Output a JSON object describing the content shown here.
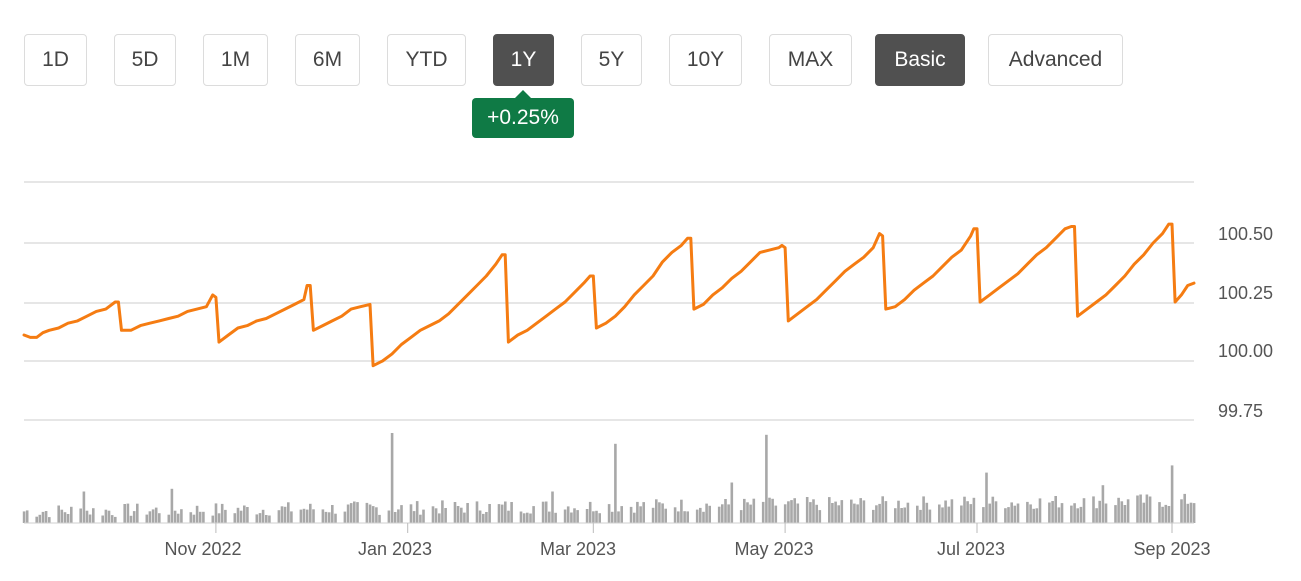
{
  "range_buttons": [
    {
      "label": "1D",
      "active": false
    },
    {
      "label": "5D",
      "active": false
    },
    {
      "label": "1M",
      "active": false
    },
    {
      "label": "6M",
      "active": false
    },
    {
      "label": "YTD",
      "active": false
    },
    {
      "label": "1Y",
      "active": true
    },
    {
      "label": "5Y",
      "active": false
    },
    {
      "label": "10Y",
      "active": false
    },
    {
      "label": "MAX",
      "active": false
    }
  ],
  "view_buttons": [
    {
      "label": "Basic",
      "active": true
    },
    {
      "label": "Advanced",
      "active": false
    }
  ],
  "change_badge": {
    "text": "+0.25%",
    "color": "#0f7a45"
  },
  "colors": {
    "line": "#f57c12",
    "volume": "#a8a8a8",
    "grid": "#dddddd",
    "active_button": "#505050"
  },
  "chart_data": {
    "type": "line",
    "title": "",
    "grid": true,
    "y_axis_position": "right",
    "ylim": [
      99.75,
      100.75
    ],
    "y_ticks": [
      "100.50",
      "100.25",
      "100.00",
      "99.75"
    ],
    "x_ticks": [
      {
        "label": "Nov 2022",
        "date": "2022-11-01"
      },
      {
        "label": "Jan 2023",
        "date": "2023-01-01"
      },
      {
        "label": "Mar 2023",
        "date": "2023-03-01"
      },
      {
        "label": "May 2023",
        "date": "2023-05-01"
      },
      {
        "label": "Jul 2023",
        "date": "2023-07-01"
      },
      {
        "label": "Sep 2023",
        "date": "2023-09-01"
      }
    ],
    "xlim": [
      "2022-09-01",
      "2023-09-08"
    ],
    "price_series": {
      "points": [
        [
          "2022-09-01",
          100.11
        ],
        [
          "2022-09-03",
          100.1
        ],
        [
          "2022-09-05",
          100.1
        ],
        [
          "2022-09-07",
          100.12
        ],
        [
          "2022-09-09",
          100.13
        ],
        [
          "2022-09-12",
          100.14
        ],
        [
          "2022-09-15",
          100.16
        ],
        [
          "2022-09-18",
          100.17
        ],
        [
          "2022-09-21",
          100.19
        ],
        [
          "2022-09-24",
          100.21
        ],
        [
          "2022-09-27",
          100.22
        ],
        [
          "2022-09-30",
          100.25
        ],
        [
          "2022-10-01",
          100.25
        ],
        [
          "2022-10-02",
          100.13
        ],
        [
          "2022-10-05",
          100.13
        ],
        [
          "2022-10-08",
          100.15
        ],
        [
          "2022-10-11",
          100.16
        ],
        [
          "2022-10-14",
          100.17
        ],
        [
          "2022-10-17",
          100.18
        ],
        [
          "2022-10-20",
          100.19
        ],
        [
          "2022-10-23",
          100.21
        ],
        [
          "2022-10-26",
          100.22
        ],
        [
          "2022-10-29",
          100.23
        ],
        [
          "2022-10-31",
          100.28
        ],
        [
          "2022-11-01",
          100.27
        ],
        [
          "2022-11-02",
          100.08
        ],
        [
          "2022-11-05",
          100.11
        ],
        [
          "2022-11-08",
          100.14
        ],
        [
          "2022-11-11",
          100.15
        ],
        [
          "2022-11-14",
          100.17
        ],
        [
          "2022-11-17",
          100.18
        ],
        [
          "2022-11-20",
          100.2
        ],
        [
          "2022-11-23",
          100.22
        ],
        [
          "2022-11-26",
          100.24
        ],
        [
          "2022-11-29",
          100.26
        ],
        [
          "2022-11-30",
          100.32
        ],
        [
          "2022-12-01",
          100.32
        ],
        [
          "2022-12-02",
          100.13
        ],
        [
          "2022-12-05",
          100.15
        ],
        [
          "2022-12-08",
          100.17
        ],
        [
          "2022-12-11",
          100.19
        ],
        [
          "2022-12-14",
          100.22
        ],
        [
          "2022-12-17",
          100.23
        ],
        [
          "2022-12-20",
          100.24
        ],
        [
          "2022-12-21",
          99.98
        ],
        [
          "2022-12-24",
          100.0
        ],
        [
          "2022-12-27",
          100.03
        ],
        [
          "2022-12-30",
          100.07
        ],
        [
          "2023-01-02",
          100.1
        ],
        [
          "2023-01-05",
          100.13
        ],
        [
          "2023-01-08",
          100.15
        ],
        [
          "2023-01-11",
          100.17
        ],
        [
          "2023-01-14",
          100.2
        ],
        [
          "2023-01-17",
          100.24
        ],
        [
          "2023-01-20",
          100.28
        ],
        [
          "2023-01-23",
          100.32
        ],
        [
          "2023-01-26",
          100.36
        ],
        [
          "2023-01-29",
          100.41
        ],
        [
          "2023-01-31",
          100.45
        ],
        [
          "2023-02-01",
          100.45
        ],
        [
          "2023-02-02",
          100.08
        ],
        [
          "2023-02-05",
          100.11
        ],
        [
          "2023-02-08",
          100.13
        ],
        [
          "2023-02-11",
          100.16
        ],
        [
          "2023-02-14",
          100.19
        ],
        [
          "2023-02-17",
          100.22
        ],
        [
          "2023-02-20",
          100.25
        ],
        [
          "2023-02-23",
          100.29
        ],
        [
          "2023-02-26",
          100.33
        ],
        [
          "2023-02-28",
          100.36
        ],
        [
          "2023-03-01",
          100.36
        ],
        [
          "2023-03-02",
          100.14
        ],
        [
          "2023-03-05",
          100.16
        ],
        [
          "2023-03-08",
          100.19
        ],
        [
          "2023-03-11",
          100.23
        ],
        [
          "2023-03-14",
          100.28
        ],
        [
          "2023-03-17",
          100.32
        ],
        [
          "2023-03-20",
          100.36
        ],
        [
          "2023-03-23",
          100.42
        ],
        [
          "2023-03-26",
          100.46
        ],
        [
          "2023-03-29",
          100.49
        ],
        [
          "2023-03-31",
          100.52
        ],
        [
          "2023-04-01",
          100.52
        ],
        [
          "2023-04-02",
          100.22
        ],
        [
          "2023-04-05",
          100.24
        ],
        [
          "2023-04-08",
          100.28
        ],
        [
          "2023-04-11",
          100.31
        ],
        [
          "2023-04-14",
          100.35
        ],
        [
          "2023-04-17",
          100.38
        ],
        [
          "2023-04-20",
          100.42
        ],
        [
          "2023-04-23",
          100.46
        ],
        [
          "2023-04-26",
          100.47
        ],
        [
          "2023-04-29",
          100.48
        ],
        [
          "2023-04-30",
          100.49
        ],
        [
          "2023-05-01",
          100.48
        ],
        [
          "2023-05-02",
          100.17
        ],
        [
          "2023-05-05",
          100.2
        ],
        [
          "2023-05-08",
          100.23
        ],
        [
          "2023-05-11",
          100.26
        ],
        [
          "2023-05-14",
          100.3
        ],
        [
          "2023-05-17",
          100.34
        ],
        [
          "2023-05-20",
          100.38
        ],
        [
          "2023-05-23",
          100.41
        ],
        [
          "2023-05-26",
          100.44
        ],
        [
          "2023-05-29",
          100.48
        ],
        [
          "2023-05-31",
          100.54
        ],
        [
          "2023-06-01",
          100.53
        ],
        [
          "2023-06-02",
          100.22
        ],
        [
          "2023-06-05",
          100.23
        ],
        [
          "2023-06-08",
          100.26
        ],
        [
          "2023-06-11",
          100.3
        ],
        [
          "2023-06-14",
          100.33
        ],
        [
          "2023-06-17",
          100.36
        ],
        [
          "2023-06-20",
          100.4
        ],
        [
          "2023-06-23",
          100.44
        ],
        [
          "2023-06-26",
          100.47
        ],
        [
          "2023-06-29",
          100.53
        ],
        [
          "2023-06-30",
          100.56
        ],
        [
          "2023-07-01",
          100.56
        ],
        [
          "2023-07-02",
          100.25
        ],
        [
          "2023-07-05",
          100.28
        ],
        [
          "2023-07-08",
          100.31
        ],
        [
          "2023-07-11",
          100.34
        ],
        [
          "2023-07-14",
          100.37
        ],
        [
          "2023-07-17",
          100.41
        ],
        [
          "2023-07-20",
          100.45
        ],
        [
          "2023-07-23",
          100.48
        ],
        [
          "2023-07-26",
          100.52
        ],
        [
          "2023-07-29",
          100.56
        ],
        [
          "2023-07-31",
          100.57
        ],
        [
          "2023-08-01",
          100.57
        ],
        [
          "2023-08-02",
          100.19
        ],
        [
          "2023-08-05",
          100.22
        ],
        [
          "2023-08-08",
          100.25
        ],
        [
          "2023-08-11",
          100.28
        ],
        [
          "2023-08-14",
          100.32
        ],
        [
          "2023-08-17",
          100.36
        ],
        [
          "2023-08-20",
          100.41
        ],
        [
          "2023-08-23",
          100.45
        ],
        [
          "2023-08-26",
          100.5
        ],
        [
          "2023-08-29",
          100.54
        ],
        [
          "2023-08-31",
          100.58
        ],
        [
          "2023-09-01",
          100.58
        ],
        [
          "2023-09-02",
          100.25
        ],
        [
          "2023-09-04",
          100.28
        ],
        [
          "2023-09-06",
          100.32
        ],
        [
          "2023-09-08",
          100.33
        ]
      ]
    },
    "volume_series": {
      "spikes": [
        [
          "2022-09-20",
          0.35
        ],
        [
          "2022-10-18",
          0.38
        ],
        [
          "2022-12-17",
          0.35
        ],
        [
          "2022-12-27",
          1.0
        ],
        [
          "2023-01-07",
          0.92
        ],
        [
          "2023-02-16",
          0.35
        ],
        [
          "2023-03-08",
          0.88
        ],
        [
          "2023-04-01",
          0.58
        ],
        [
          "2023-04-14",
          0.45
        ],
        [
          "2023-04-25",
          0.98
        ],
        [
          "2023-07-04",
          0.56
        ],
        [
          "2023-07-15",
          0.55
        ],
        [
          "2023-08-10",
          0.42
        ],
        [
          "2023-09-01",
          0.64
        ]
      ]
    }
  }
}
